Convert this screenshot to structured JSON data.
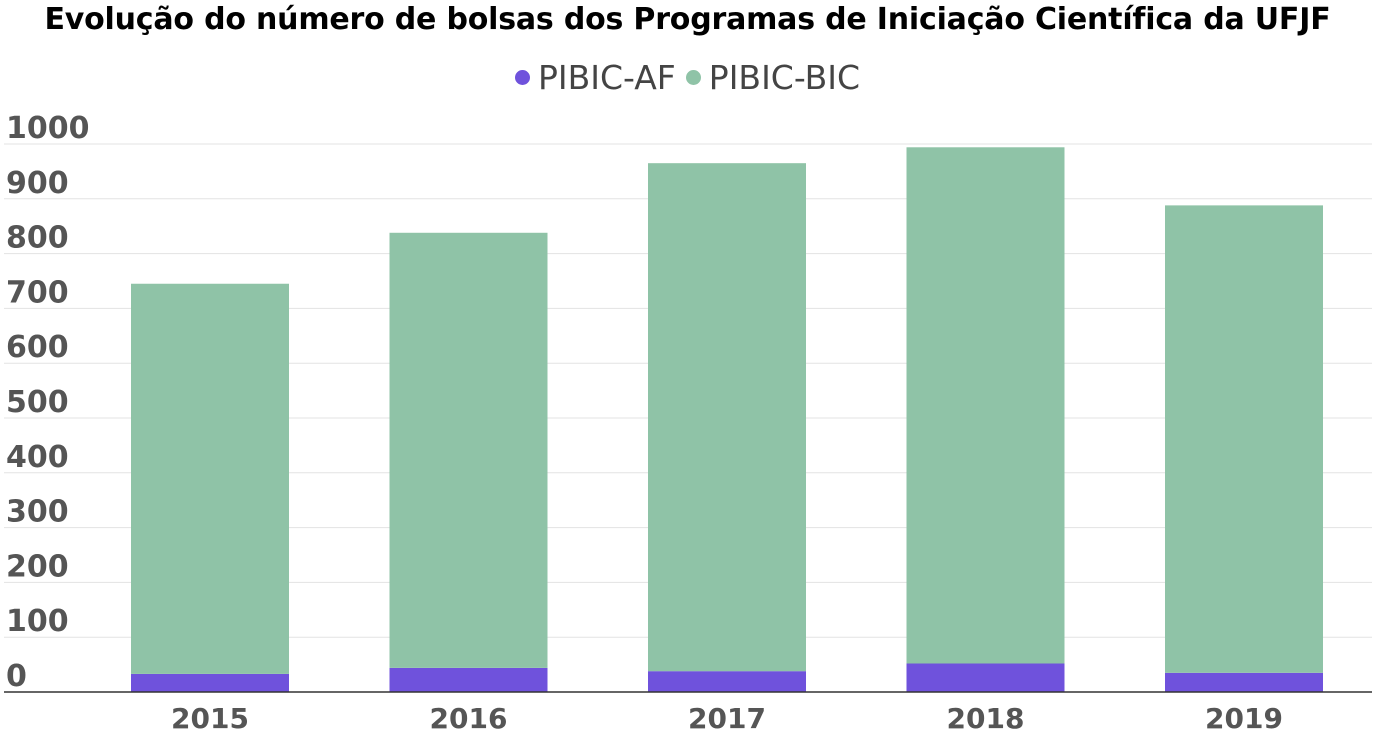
{
  "chart_data": {
    "type": "bar",
    "stacked": true,
    "title": "Evolução do número de bolsas dos Programas de Iniciação Científica da UFJF",
    "xlabel": "",
    "ylabel": "",
    "categories": [
      "2015",
      "2016",
      "2017",
      "2018",
      "2019"
    ],
    "series": [
      {
        "name": "PIBIC-AF",
        "color": "#6f52dc",
        "values": [
          33,
          44,
          38,
          52,
          35
        ]
      },
      {
        "name": "PIBIC-BIC",
        "color": "#8fc3a7",
        "values": [
          712,
          794,
          927,
          942,
          853
        ]
      }
    ],
    "ylim": [
      0,
      1000
    ],
    "yticks": [
      0,
      100,
      200,
      300,
      400,
      500,
      600,
      700,
      800,
      900,
      1000
    ],
    "grid": true,
    "legend_position": "top-center"
  }
}
